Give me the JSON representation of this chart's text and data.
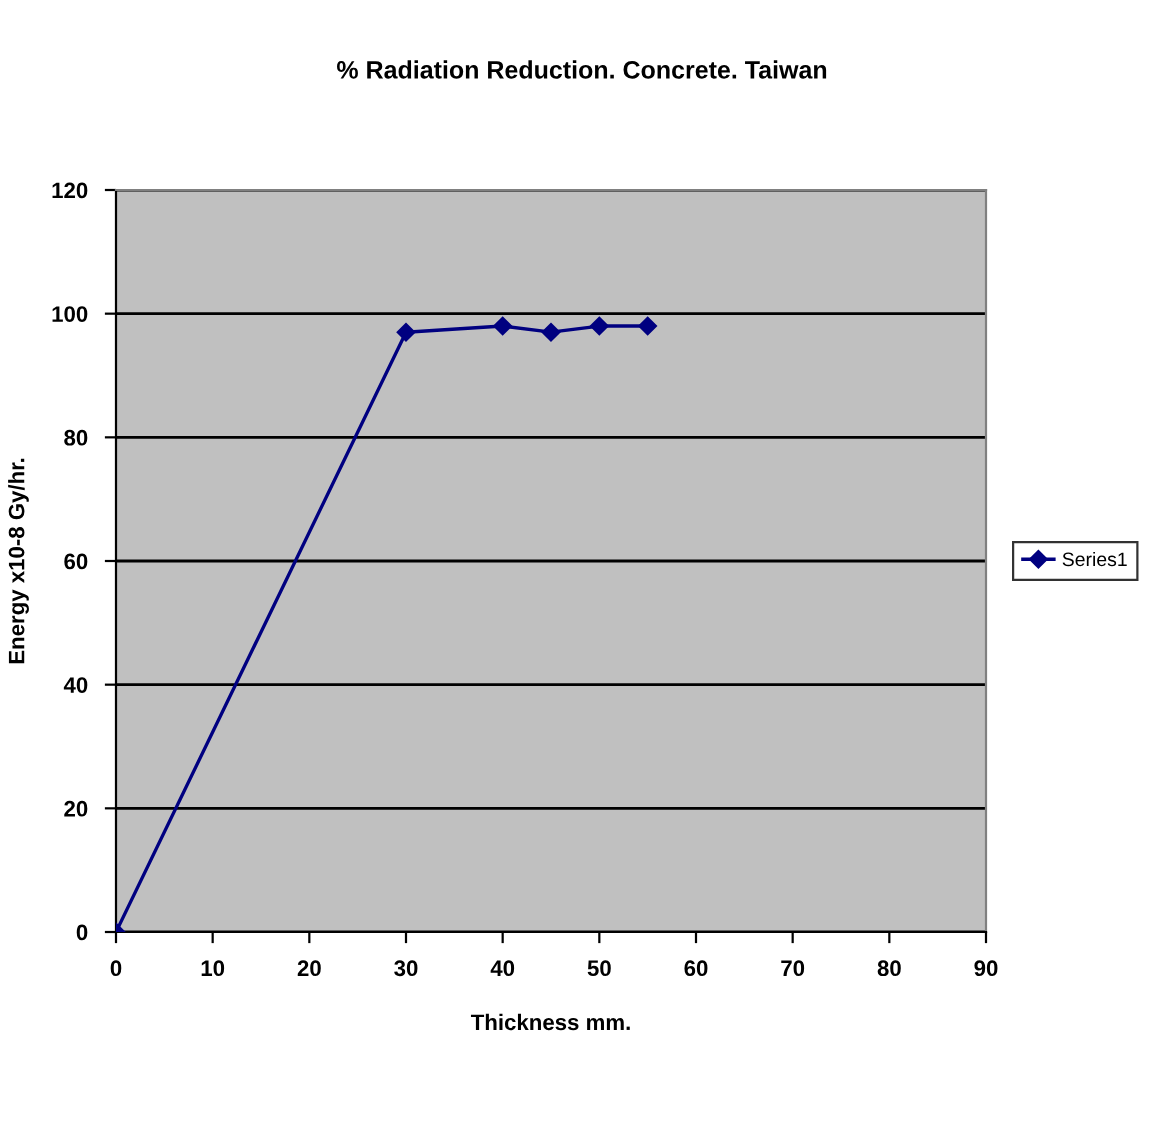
{
  "chart_data": {
    "type": "line",
    "title": "% Radiation Reduction. Concrete. Taiwan",
    "xlabel": "Thickness mm.",
    "ylabel": "Energy x10-8 Gy/hr.",
    "x": [
      0,
      30,
      40,
      45,
      50,
      55
    ],
    "series": [
      {
        "name": "Series1",
        "color": "#000080",
        "values": [
          0,
          97,
          98,
          97,
          98,
          98
        ]
      }
    ],
    "xlim": [
      0,
      90
    ],
    "xticks": [
      0,
      10,
      20,
      30,
      40,
      50,
      60,
      70,
      80,
      90
    ],
    "ylim": [
      0,
      120
    ],
    "yticks": [
      0,
      20,
      40,
      60,
      80,
      100,
      120
    ],
    "grid": "y",
    "legend": "right",
    "marker": "diamond",
    "line_style": "solid"
  }
}
